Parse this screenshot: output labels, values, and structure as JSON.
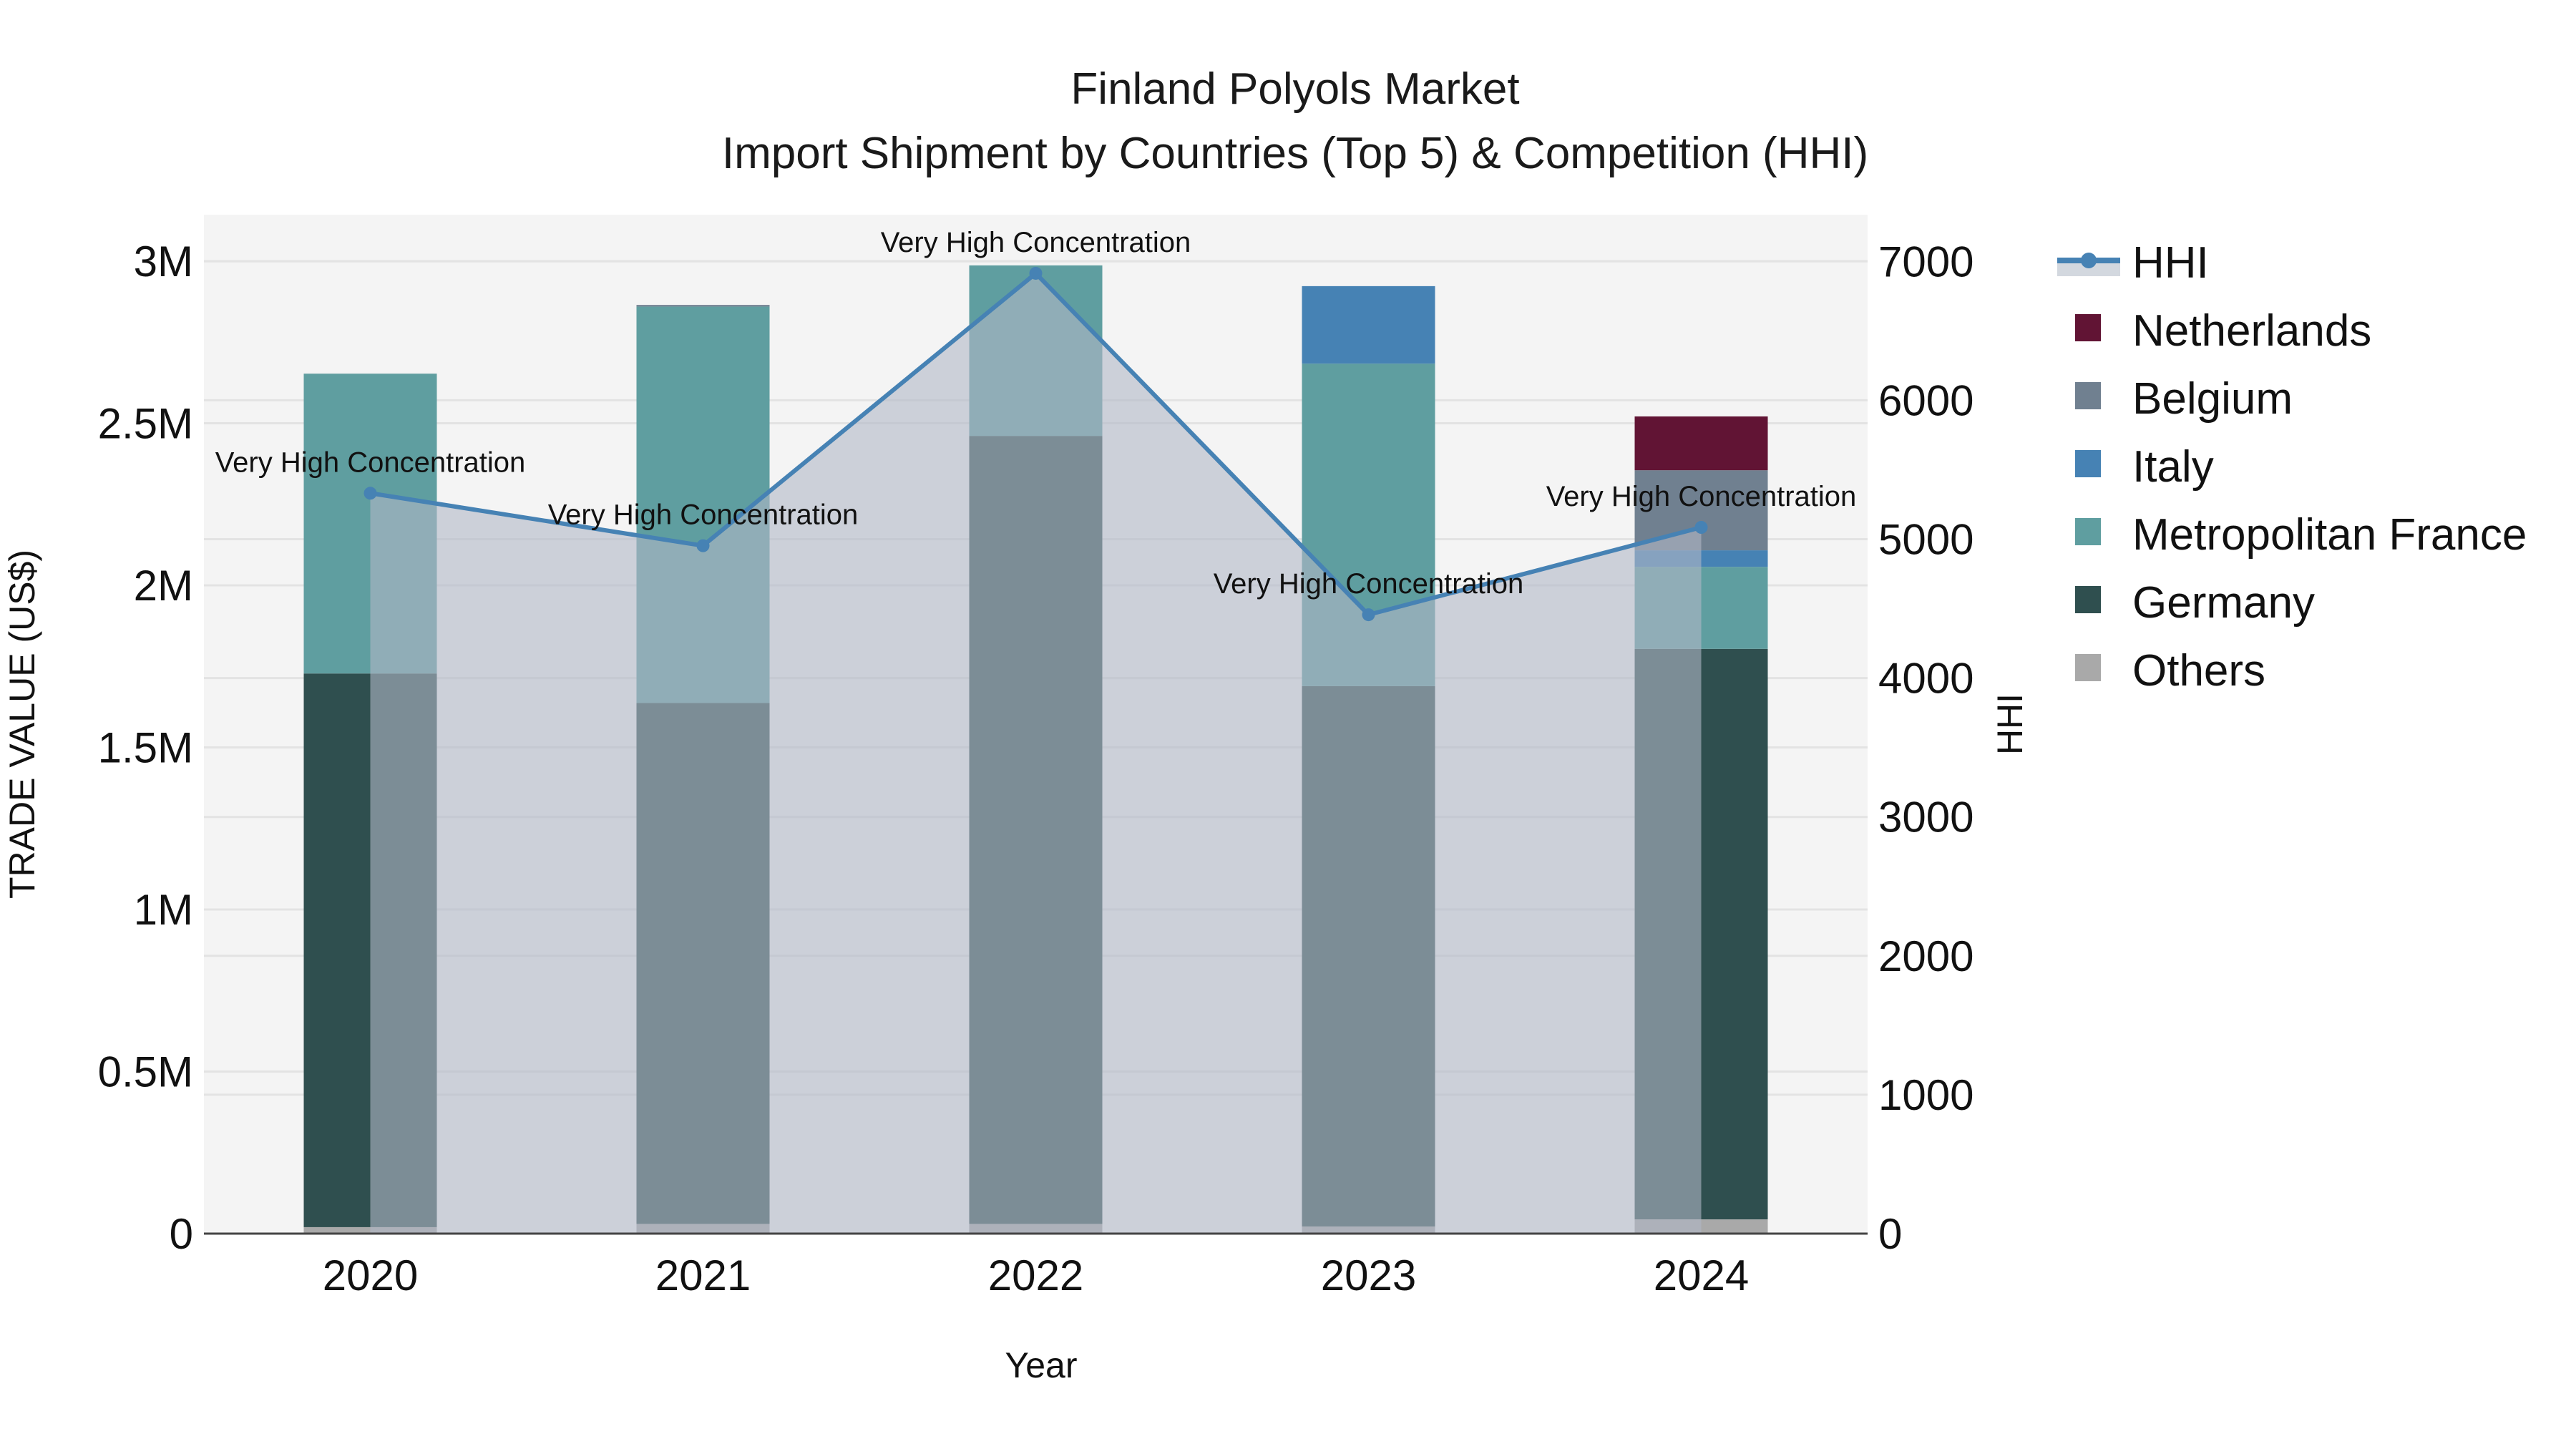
{
  "chart_data": {
    "type": "bar",
    "title": "Finland Polyols Market",
    "subtitle": "Import Shipment by Countries (Top 5) & Competition (HHI)",
    "xlabel": "Year",
    "ylabel": "TRADE VALUE (US$)",
    "y2label": "HHI",
    "categories": [
      "2020",
      "2021",
      "2022",
      "2023",
      "2024"
    ],
    "ylim": [
      0,
      3150000
    ],
    "y2lim": [
      0,
      7350
    ],
    "yticks": [
      {
        "value": 0,
        "label": "0"
      },
      {
        "value": 500000,
        "label": "0.5M"
      },
      {
        "value": 1000000,
        "label": "1M"
      },
      {
        "value": 1500000,
        "label": "1.5M"
      },
      {
        "value": 2000000,
        "label": "2M"
      },
      {
        "value": 2500000,
        "label": "2.5M"
      },
      {
        "value": 3000000,
        "label": "3M"
      }
    ],
    "y2ticks": [
      {
        "value": 0,
        "label": "0"
      },
      {
        "value": 1000,
        "label": "1000"
      },
      {
        "value": 2000,
        "label": "2000"
      },
      {
        "value": 3000,
        "label": "3000"
      },
      {
        "value": 4000,
        "label": "4000"
      },
      {
        "value": 5000,
        "label": "5000"
      },
      {
        "value": 6000,
        "label": "6000"
      },
      {
        "value": 7000,
        "label": "7000"
      }
    ],
    "grid": true,
    "barmode": "stack",
    "legend_position": "right",
    "series": [
      {
        "name": "Others",
        "color": "#A9A9A9",
        "values": [
          20000,
          30000,
          30000,
          22000,
          44000
        ]
      },
      {
        "name": "Germany",
        "color": "#2F4F4F",
        "values": [
          1708000,
          1607000,
          2431000,
          1667000,
          1760000
        ]
      },
      {
        "name": "Metropolitan France",
        "color": "#5F9EA0",
        "values": [
          925000,
          1223000,
          526000,
          995000,
          253000
        ]
      },
      {
        "name": "Italy",
        "color": "#4682B4",
        "values": [
          0,
          0,
          0,
          239000,
          51000
        ]
      },
      {
        "name": "Belgium",
        "color": "#708090",
        "values": [
          0,
          5000,
          0,
          0,
          247000
        ]
      },
      {
        "name": "Netherlands",
        "color": "#611434",
        "values": [
          0,
          0,
          0,
          0,
          166000
        ]
      }
    ],
    "hhi": {
      "name": "HHI",
      "color": "#4682B4",
      "fill_color": "rgba(176,184,198,0.6)",
      "values": [
        5331,
        4953,
        6914,
        4456,
        5085
      ],
      "annotations": [
        "Very High Concentration",
        "Very High Concentration",
        "Very High Concentration",
        "Very High Concentration",
        "Very High Concentration"
      ]
    }
  },
  "legend": {
    "items": [
      {
        "label": "HHI",
        "color": "#4682B4",
        "kind": "line"
      },
      {
        "label": "Netherlands",
        "color": "#611434",
        "kind": "box"
      },
      {
        "label": "Belgium",
        "color": "#708090",
        "kind": "box"
      },
      {
        "label": "Italy",
        "color": "#4682B4",
        "kind": "box"
      },
      {
        "label": "Metropolitan France",
        "color": "#5F9EA0",
        "kind": "box"
      },
      {
        "label": "Germany",
        "color": "#2F4F4F",
        "kind": "box"
      },
      {
        "label": "Others",
        "color": "#A9A9A9",
        "kind": "box"
      }
    ]
  },
  "colors": {
    "plot_bg": "#F4F4F4",
    "grid": "#E3E3E3",
    "axis_line": "#444444"
  }
}
